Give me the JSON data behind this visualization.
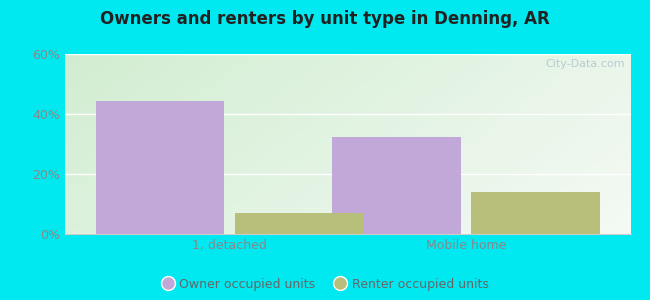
{
  "title": "Owners and renters by unit type in Denning, AR",
  "categories": [
    "1, detached",
    "Mobile home"
  ],
  "owner_values": [
    44.4,
    32.3
  ],
  "renter_values": [
    7.0,
    14.0
  ],
  "owner_color": "#c2a8d8",
  "renter_color": "#b8bf7a",
  "ylim": [
    0,
    60
  ],
  "yticks": [
    0,
    20,
    40,
    60
  ],
  "ytick_labels": [
    "0%",
    "20%",
    "40%",
    "60%"
  ],
  "legend_labels": [
    "Owner occupied units",
    "Renter occupied units"
  ],
  "bg_outer": "#00e8f0",
  "watermark": "City-Data.com",
  "bar_width": 0.25,
  "group_centers": [
    0.27,
    0.73
  ]
}
